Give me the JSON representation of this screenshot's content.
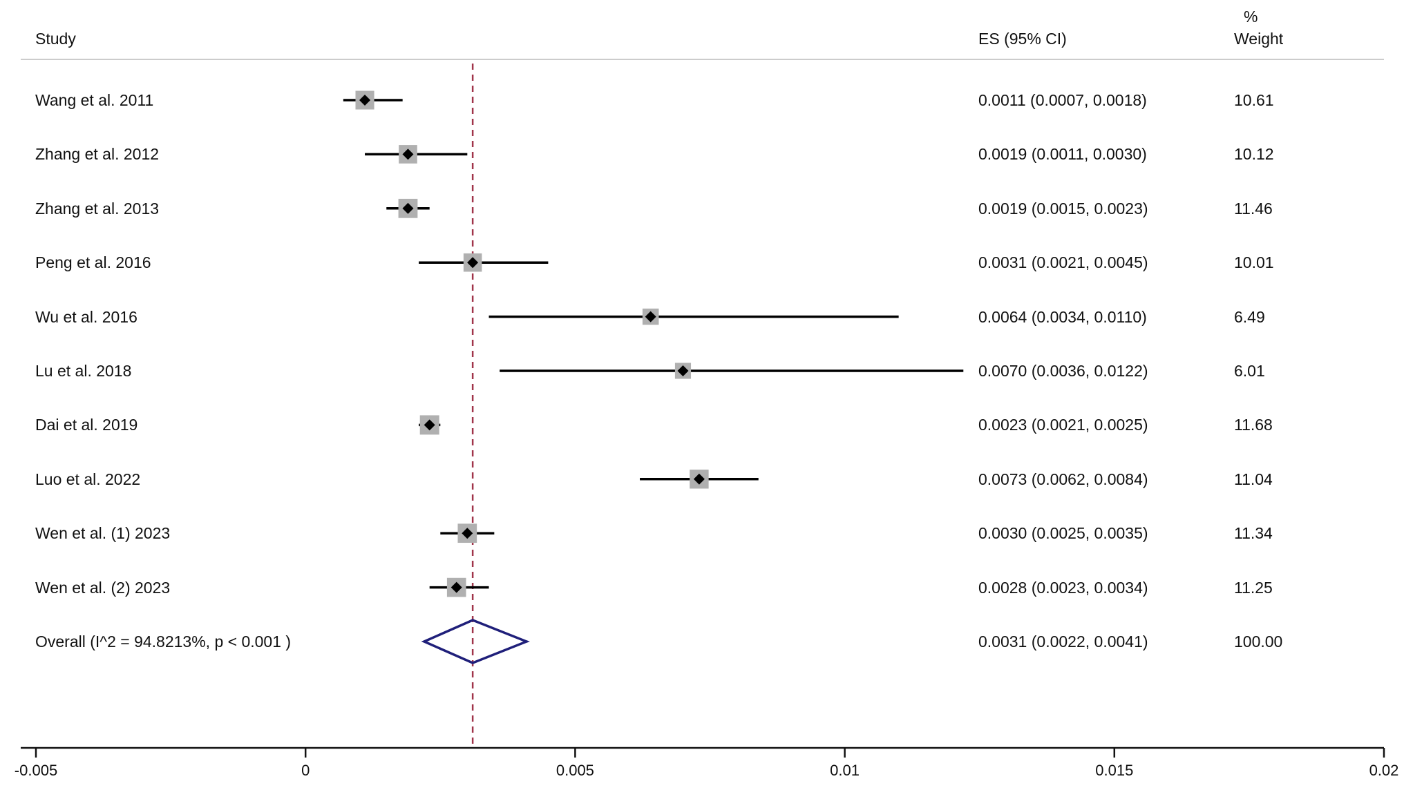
{
  "chart_data": {
    "type": "forest",
    "headers": {
      "study": "Study",
      "es": "ES (95% CI)",
      "weight_top": "%",
      "weight_bottom": "Weight"
    },
    "studies": [
      {
        "name": "Wang et al. 2011",
        "es": 0.0011,
        "lo": 0.0007,
        "hi": 0.0018,
        "es_text": "0.0011 (0.0007, 0.0018)",
        "weight": "10.61"
      },
      {
        "name": "Zhang et al. 2012",
        "es": 0.0019,
        "lo": 0.0011,
        "hi": 0.003,
        "es_text": "0.0019 (0.0011, 0.0030)",
        "weight": "10.12"
      },
      {
        "name": "Zhang et al. 2013",
        "es": 0.0019,
        "lo": 0.0015,
        "hi": 0.0023,
        "es_text": "0.0019 (0.0015, 0.0023)",
        "weight": "11.46"
      },
      {
        "name": "Peng et al. 2016",
        "es": 0.0031,
        "lo": 0.0021,
        "hi": 0.0045,
        "es_text": "0.0031 (0.0021, 0.0045)",
        "weight": "10.01"
      },
      {
        "name": "Wu et al. 2016",
        "es": 0.0064,
        "lo": 0.0034,
        "hi": 0.011,
        "es_text": "0.0064 (0.0034, 0.0110)",
        "weight": "6.49"
      },
      {
        "name": "Lu et al. 2018",
        "es": 0.007,
        "lo": 0.0036,
        "hi": 0.0122,
        "es_text": "0.0070 (0.0036, 0.0122)",
        "weight": "6.01"
      },
      {
        "name": "Dai et al. 2019",
        "es": 0.0023,
        "lo": 0.0021,
        "hi": 0.0025,
        "es_text": "0.0023 (0.0021, 0.0025)",
        "weight": "11.68"
      },
      {
        "name": "Luo et al. 2022",
        "es": 0.0073,
        "lo": 0.0062,
        "hi": 0.0084,
        "es_text": "0.0073 (0.0062, 0.0084)",
        "weight": "11.04"
      },
      {
        "name": "Wen et al. (1) 2023",
        "es": 0.003,
        "lo": 0.0025,
        "hi": 0.0035,
        "es_text": "0.0030 (0.0025, 0.0035)",
        "weight": "11.34"
      },
      {
        "name": "Wen et al. (2) 2023",
        "es": 0.0028,
        "lo": 0.0023,
        "hi": 0.0034,
        "es_text": "0.0028 (0.0023, 0.0034)",
        "weight": "11.25"
      }
    ],
    "overall": {
      "name": "Overall  (I^2 = 94.8213%, p < 0.001  )",
      "es": 0.0031,
      "lo": 0.0022,
      "hi": 0.0041,
      "es_text": "0.0031 (0.0022, 0.0041)",
      "weight": "100.00"
    },
    "x_ticks": [
      {
        "value": -0.005,
        "label": "-0.005"
      },
      {
        "value": 0,
        "label": "0"
      },
      {
        "value": 0.005,
        "label": "0.005"
      },
      {
        "value": 0.01,
        "label": "0.01"
      },
      {
        "value": 0.015,
        "label": "0.015"
      },
      {
        "value": 0.02,
        "label": "0.02"
      }
    ],
    "xlim": [
      -0.005,
      0.02
    ],
    "reference_line": 0.0031,
    "arrow_clip_value": 0.0122,
    "colors": {
      "ci_line": "#000000",
      "weight_box": "#b0b0b0",
      "point": "#000000",
      "overall_diamond": "#1f1f7a",
      "reference_line": "#a0344a",
      "separator": "#cccccc"
    }
  }
}
